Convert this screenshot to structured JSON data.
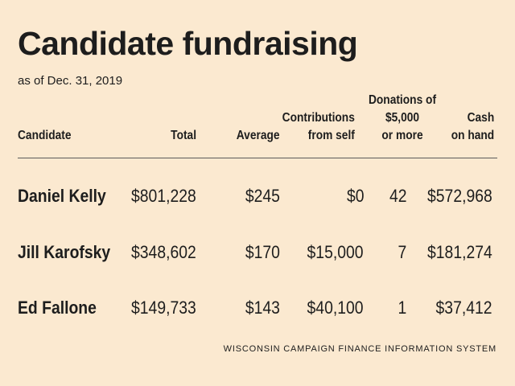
{
  "title": "Candidate fundraising",
  "subtitle": "as of Dec. 31, 2019",
  "source": "WISCONSIN CAMPAIGN FINANCE INFORMATION SYSTEM",
  "chart_data": {
    "type": "table",
    "title": "Candidate fundraising",
    "subtitle": "as of Dec. 31, 2019",
    "columns": [
      "Candidate",
      "Total",
      "Average",
      "Contributions\nfrom self",
      "Donations of\n$5,000\nor more",
      "Cash\non hand"
    ],
    "rows": [
      [
        "Daniel Kelly",
        "$801,228",
        "$245",
        "$0",
        "42",
        "$572,968"
      ],
      [
        "Jill Karofsky",
        "$348,602",
        "$170",
        "$15,000",
        "7",
        "$181,274"
      ],
      [
        "Ed Fallone",
        "$149,733",
        "$143",
        "$40,100",
        "1",
        "$37,412"
      ]
    ]
  }
}
